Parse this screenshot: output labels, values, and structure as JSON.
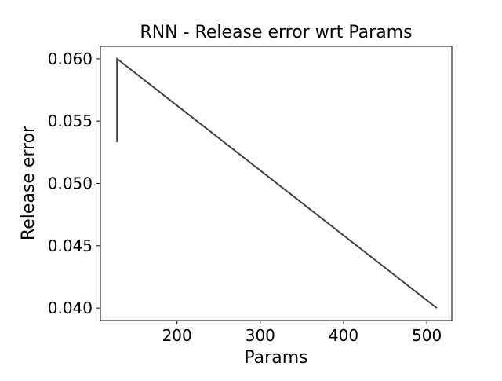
{
  "chart_data": {
    "type": "line",
    "title": "RNN - Release error wrt Params",
    "xlabel": "Params",
    "ylabel": "Release error",
    "xlim": [
      108,
      530
    ],
    "ylim": [
      0.039,
      0.061
    ],
    "x_ticks": [
      200,
      300,
      400,
      500
    ],
    "y_ticks": [
      0.04,
      0.045,
      0.05,
      0.055,
      0.06
    ],
    "x_tick_labels": [
      "200",
      "300",
      "400",
      "500"
    ],
    "y_tick_labels": [
      "0.040",
      "0.045",
      "0.050",
      "0.055",
      "0.060"
    ],
    "grid": false,
    "legend": "none",
    "series": [
      {
        "color": "#404040",
        "x": [
          128,
          128,
          512
        ],
        "y": [
          0.0533,
          0.06,
          0.04
        ]
      }
    ]
  }
}
